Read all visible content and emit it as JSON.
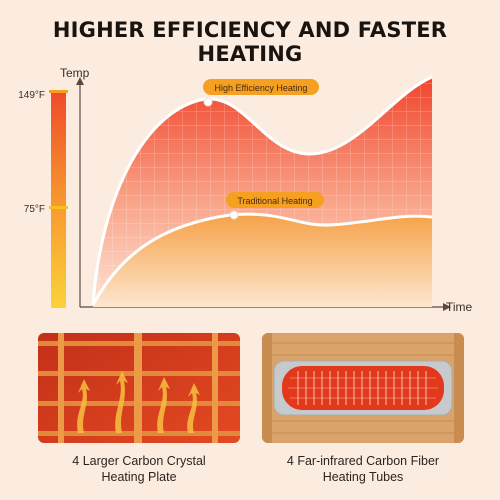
{
  "headline": "HIGHER EFFICIENCY AND FASTER HEATING",
  "chart": {
    "y_axis_label": "Temp",
    "x_axis_label": "Time",
    "thermo_top_label": "149°F",
    "thermo_mid_label": "75°F",
    "high_curve_label": "High Efficiency Heating",
    "trad_curve_label": "Traditional Heating",
    "accent_color": "#f5a020",
    "curve_fill_top": "#f0402a",
    "curve_fill_light": "#fde2c4"
  },
  "features": [
    {
      "line1": "4 Larger Carbon Crystal",
      "line2": "Heating Plate",
      "icon": "carbon-crystal-heater-photo"
    },
    {
      "line1": "4 Far-infrared Carbon Fiber",
      "line2": "Heating Tubes",
      "icon": "carbon-fiber-tube-photo"
    }
  ]
}
